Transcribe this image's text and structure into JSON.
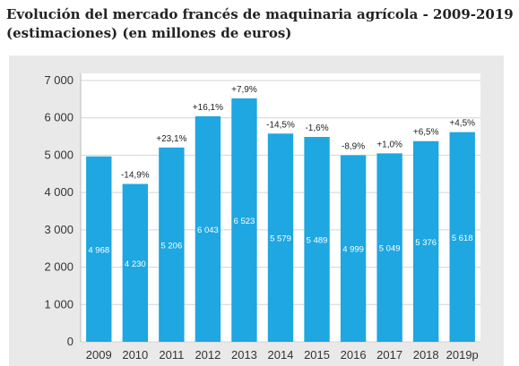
{
  "title": "Evolución del mercado francés de maquinaria agrícola - 2009-2019 (estimaciones) (en millones de euros)",
  "colors": {
    "bar": "#1ea7e1",
    "panel": "#e9e9e9",
    "plot_bg": "#ffffff",
    "grid": "#d4d4d4"
  },
  "chart_data": {
    "type": "bar",
    "title": "Evolución del mercado francés de maquinaria agrícola - 2009-2019 (estimaciones) (en millones de euros)",
    "categories": [
      "2009",
      "2010",
      "2011",
      "2012",
      "2013",
      "2014",
      "2015",
      "2016",
      "2017",
      "2018",
      "2019p"
    ],
    "values": [
      4968,
      4230,
      5206,
      6043,
      6523,
      5579,
      5489,
      4999,
      5049,
      5376,
      5618
    ],
    "value_labels": [
      "4 968",
      "4 230",
      "5 206",
      "6 043",
      "6 523",
      "5 579",
      "5 489",
      "4 999",
      "5 049",
      "5 376",
      "5 618"
    ],
    "change_labels": [
      "",
      "-14,9%",
      "+23,1%",
      "+16,1%",
      "+7,9%",
      "-14,5%",
      "-1,6%",
      "-8,9%",
      "+1,0%",
      "+6,5%",
      "+4,5%"
    ],
    "y_ticks": [
      0,
      1000,
      2000,
      3000,
      4000,
      5000,
      6000,
      7000
    ],
    "y_tick_labels": [
      "0",
      "1 000",
      "2 000",
      "3 000",
      "4 000",
      "5 000",
      "6 000",
      "7 000"
    ],
    "ylim": [
      0,
      7000
    ],
    "xlabel": "",
    "ylabel": "",
    "grid": true,
    "legend": "none"
  }
}
